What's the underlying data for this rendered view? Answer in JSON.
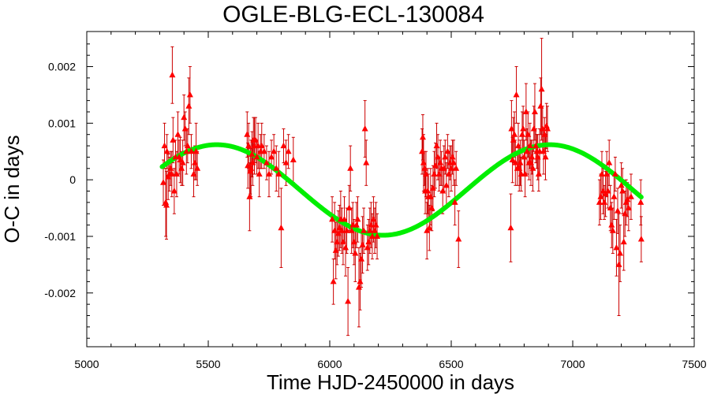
{
  "chart_data": {
    "type": "scatter",
    "title": "OGLE-BLG-ECL-130084",
    "xlabel": "Time HJD-2450000 in days",
    "ylabel": "O-C in days",
    "xlim": [
      5000,
      7500
    ],
    "ylim": [
      -0.00295,
      0.00262
    ],
    "xticks": [
      5000,
      5500,
      6000,
      6500,
      7000,
      7500
    ],
    "xtick_labels": [
      "5000",
      "5500",
      "6000",
      "6500",
      "7000",
      "7500"
    ],
    "yticks": [
      0.002,
      0.001,
      0,
      -0.001,
      -0.002
    ],
    "ytick_labels": [
      "0.002",
      "0.001",
      "0",
      "-0.001",
      "-0.002"
    ],
    "grid": false,
    "colors": {
      "points": "#ff0000",
      "errorbars": "#cc0000",
      "fit": "#00ee00"
    },
    "series": [
      {
        "marker": "triangle",
        "points": [
          [
            5315,
            -5e-05,
            0.0004
          ],
          [
            5320,
            0.0006,
            0.0004
          ],
          [
            5325,
            -0.0004,
            0.0006
          ],
          [
            5328,
            -0.00045,
            0.0006
          ],
          [
            5330,
            0.0005,
            0.0003
          ],
          [
            5335,
            5e-05,
            0.0004
          ],
          [
            5340,
            0.0001,
            0.0003
          ],
          [
            5345,
            0.0002,
            0.0003
          ],
          [
            5350,
            0.0001,
            0.0004
          ],
          [
            5352,
            0.00185,
            0.0005
          ],
          [
            5355,
            0.0007,
            0.0004
          ],
          [
            5360,
            -0.0002,
            0.0004
          ],
          [
            5365,
            0.0004,
            0.0003
          ],
          [
            5370,
            0.0001,
            0.0004
          ],
          [
            5375,
            0.0008,
            0.0004
          ],
          [
            5380,
            0.0004,
            0.0003
          ],
          [
            5385,
            0.00035,
            0.0004
          ],
          [
            5390,
            0.0002,
            0.0003
          ],
          [
            5395,
            0.0003,
            0.0004
          ],
          [
            5400,
            0.0011,
            0.0004
          ],
          [
            5405,
            0.0009,
            0.0003
          ],
          [
            5410,
            0.0005,
            0.0004
          ],
          [
            5415,
            0.0006,
            0.0003
          ],
          [
            5420,
            0.0013,
            0.0005
          ],
          [
            5425,
            0.0015,
            0.0005
          ],
          [
            5430,
            0.0005,
            0.0003
          ],
          [
            5440,
            0.0001,
            0.0004
          ],
          [
            5445,
            0.0003,
            0.0003
          ],
          [
            5450,
            0.0005,
            0.0005
          ],
          [
            5455,
            0.0002,
            0.0003
          ],
          [
            5660,
            0.0008,
            0.0004
          ],
          [
            5663,
            0.00025,
            0.0004
          ],
          [
            5666,
            0.0006,
            0.0004
          ],
          [
            5670,
            -0.0003,
            0.0006
          ],
          [
            5673,
            0.00015,
            0.0004
          ],
          [
            5676,
            0.0002,
            0.0005
          ],
          [
            5680,
            0.00045,
            0.0004
          ],
          [
            5683,
            0.0003,
            0.0004
          ],
          [
            5686,
            0.0007,
            0.0004
          ],
          [
            5690,
            0.0006,
            0.0005
          ],
          [
            5695,
            0.0007,
            0.0004
          ],
          [
            5700,
            0.0004,
            0.0003
          ],
          [
            5705,
            0.0006,
            0.0004
          ],
          [
            5710,
            0.0001,
            0.0004
          ],
          [
            5715,
            0.0005,
            0.0003
          ],
          [
            5720,
            0.0006,
            0.0004
          ],
          [
            5730,
            0.0005,
            0.0003
          ],
          [
            5740,
            0.0003,
            0.0003
          ],
          [
            5750,
            0.0001,
            0.0004
          ],
          [
            5760,
            0.0004,
            0.0003
          ],
          [
            5770,
            0.0005,
            0.0003
          ],
          [
            5780,
            0.0002,
            0.0004
          ],
          [
            5790,
            0.0001,
            0.0004
          ],
          [
            5800,
            -0.00085,
            0.0007
          ],
          [
            5810,
            0.0006,
            0.0003
          ],
          [
            5820,
            0.0003,
            0.0004
          ],
          [
            5830,
            0.0005,
            0.0003
          ],
          [
            5850,
            0.00035,
            0.0004
          ],
          [
            6010,
            -0.0007,
            0.0004
          ],
          [
            6015,
            -0.0018,
            0.0004
          ],
          [
            6020,
            -0.0009,
            0.0005
          ],
          [
            6025,
            -0.00125,
            0.0005
          ],
          [
            6030,
            -0.0011,
            0.0004
          ],
          [
            6035,
            -0.00095,
            0.0004
          ],
          [
            6040,
            -0.00085,
            0.0004
          ],
          [
            6045,
            -0.0007,
            0.0005
          ],
          [
            6050,
            -0.0009,
            0.0004
          ],
          [
            6055,
            -0.0011,
            0.0004
          ],
          [
            6060,
            -0.0007,
            0.0004
          ],
          [
            6065,
            -0.0012,
            0.0005
          ],
          [
            6070,
            -0.0009,
            0.0004
          ],
          [
            6075,
            -0.00215,
            0.0006
          ],
          [
            6080,
            -0.0005,
            0.0004
          ],
          [
            6085,
            0.0002,
            0.0004
          ],
          [
            6090,
            -0.0009,
            0.0004
          ],
          [
            6095,
            -0.0008,
            0.0004
          ],
          [
            6100,
            -0.0011,
            0.0004
          ],
          [
            6105,
            -0.0013,
            0.0005
          ],
          [
            6110,
            -0.0008,
            0.0004
          ],
          [
            6115,
            -0.0007,
            0.0004
          ],
          [
            6120,
            -0.0019,
            0.0007
          ],
          [
            6125,
            -0.0018,
            0.0005
          ],
          [
            6130,
            -0.0014,
            0.0005
          ],
          [
            6135,
            -0.00115,
            0.0005
          ],
          [
            6140,
            -0.0009,
            0.0004
          ],
          [
            6145,
            0.0009,
            0.0005
          ],
          [
            6150,
            0.0003,
            0.0004
          ],
          [
            6155,
            -0.0012,
            0.0004
          ],
          [
            6160,
            -0.0011,
            0.0004
          ],
          [
            6165,
            -0.0009,
            0.0004
          ],
          [
            6170,
            -0.0008,
            0.0004
          ],
          [
            6175,
            -0.001,
            0.0004
          ],
          [
            6180,
            -0.0007,
            0.0004
          ],
          [
            6185,
            -0.0009,
            0.0004
          ],
          [
            6190,
            -0.0008,
            0.0004
          ],
          [
            6195,
            -0.001,
            0.0004
          ],
          [
            6380,
            0.0005,
            0.0004
          ],
          [
            6383,
            0.00075,
            0.0004
          ],
          [
            6386,
            0.0003,
            0.0005
          ],
          [
            6390,
            0.0002,
            0.0003
          ],
          [
            6393,
            -0.0002,
            0.0004
          ],
          [
            6396,
            0.0001,
            0.0004
          ],
          [
            6400,
            -0.0009,
            0.0005
          ],
          [
            6403,
            -0.0002,
            0.0004
          ],
          [
            6406,
            -0.0003,
            0.0004
          ],
          [
            6410,
            -0.00085,
            0.0004
          ],
          [
            6415,
            -0.0003,
            0.0005
          ],
          [
            6420,
            -0.0005,
            0.0004
          ],
          [
            6425,
            -0.00015,
            0.0004
          ],
          [
            6430,
            0.0001,
            0.0004
          ],
          [
            6435,
            0.00025,
            0.0004
          ],
          [
            6440,
            0.0006,
            0.0004
          ],
          [
            6445,
            0.0004,
            0.0004
          ],
          [
            6450,
            0.0001,
            0.0003
          ],
          [
            6455,
            0.0003,
            0.0004
          ],
          [
            6460,
            0.0002,
            0.0003
          ],
          [
            6465,
            -0.0002,
            0.0004
          ],
          [
            6470,
            0.0002,
            0.0004
          ],
          [
            6475,
            0.0004,
            0.0003
          ],
          [
            6480,
            -0.0001,
            0.0004
          ],
          [
            6485,
            0.0005,
            0.0003
          ],
          [
            6490,
            0.0001,
            0.0004
          ],
          [
            6495,
            0.0003,
            0.0003
          ],
          [
            6500,
            0.0002,
            0.0004
          ],
          [
            6505,
            0.0004,
            0.0003
          ],
          [
            6510,
            0.0003,
            0.0004
          ],
          [
            6515,
            -0.0004,
            0.0004
          ],
          [
            6520,
            0.0002,
            0.0003
          ],
          [
            6530,
            -0.00105,
            0.0005
          ],
          [
            6745,
            -0.00085,
            0.0006
          ],
          [
            6748,
            0.0009,
            0.0005
          ],
          [
            6752,
            0.00035,
            0.0004
          ],
          [
            6756,
            0.0007,
            0.0004
          ],
          [
            6760,
            0.0008,
            0.0004
          ],
          [
            6764,
            0.0003,
            0.0004
          ],
          [
            6768,
            0.0015,
            0.0005
          ],
          [
            6772,
            0.0002,
            0.0003
          ],
          [
            6776,
            0.0006,
            0.0004
          ],
          [
            6780,
            0.0002,
            0.0004
          ],
          [
            6784,
            0.0003,
            0.0004
          ],
          [
            6788,
            0.0001,
            0.0003
          ],
          [
            6792,
            0.0008,
            0.0004
          ],
          [
            6796,
            0.0009,
            0.0004
          ],
          [
            6800,
            0.0004,
            0.0003
          ],
          [
            6804,
            0.0001,
            0.0004
          ],
          [
            6808,
            0.0012,
            0.0005
          ],
          [
            6812,
            0.0005,
            0.0004
          ],
          [
            6816,
            0.0008,
            0.0004
          ],
          [
            6820,
            0.0003,
            0.0003
          ],
          [
            6824,
            0.0006,
            0.0004
          ],
          [
            6828,
            0.0003,
            0.0004
          ],
          [
            6832,
            0.0004,
            0.0003
          ],
          [
            6836,
            0.0002,
            0.0004
          ],
          [
            6840,
            0.0009,
            0.0004
          ],
          [
            6844,
            0.0012,
            0.0005
          ],
          [
            6848,
            0.0006,
            0.0003
          ],
          [
            6852,
            0.0005,
            0.0003
          ],
          [
            6856,
            0.0004,
            0.0004
          ],
          [
            6860,
            0.0001,
            0.0003
          ],
          [
            6864,
            0.0005,
            0.0004
          ],
          [
            6868,
            0.0013,
            0.0005
          ],
          [
            6872,
            0.0016,
            0.0009
          ],
          [
            6876,
            0.0009,
            0.0004
          ],
          [
            6880,
            0.0005,
            0.0004
          ],
          [
            6884,
            0.0008,
            0.0003
          ],
          [
            6888,
            0.0004,
            0.0004
          ],
          [
            6892,
            0.00095,
            0.0004
          ],
          [
            6896,
            0.0009,
            0.0004
          ],
          [
            7110,
            -0.0004,
            0.0004
          ],
          [
            7115,
            -0.0003,
            0.0004
          ],
          [
            7120,
            0.0001,
            0.0004
          ],
          [
            7125,
            -0.0002,
            0.0004
          ],
          [
            7130,
            -0.0004,
            0.0003
          ],
          [
            7135,
            -0.00025,
            0.0004
          ],
          [
            7140,
            0.0001,
            0.0004
          ],
          [
            7145,
            -0.0002,
            0.0003
          ],
          [
            7150,
            0.0003,
            0.0004
          ],
          [
            7155,
            -0.0005,
            0.0004
          ],
          [
            7160,
            -0.0008,
            0.0004
          ],
          [
            7165,
            -0.0009,
            0.0004
          ],
          [
            7170,
            -0.0003,
            0.0004
          ],
          [
            7175,
            0.0001,
            0.0003
          ],
          [
            7180,
            -0.0012,
            0.0005
          ],
          [
            7185,
            -0.00055,
            0.0004
          ],
          [
            7190,
            -0.0015,
            0.0009
          ],
          [
            7195,
            -0.0013,
            0.0005
          ],
          [
            7200,
            -0.0001,
            0.0004
          ],
          [
            7205,
            -0.0002,
            0.0004
          ],
          [
            7210,
            -0.0011,
            0.0005
          ],
          [
            7215,
            -0.0006,
            0.0004
          ],
          [
            7220,
            -0.0004,
            0.0004
          ],
          [
            7225,
            -0.00035,
            0.0003
          ],
          [
            7230,
            -0.0005,
            0.0004
          ],
          [
            7240,
            -0.0003,
            0.0004
          ],
          [
            7280,
            -0.0004,
            0.0004
          ],
          [
            7282,
            -0.00105,
            0.0004
          ]
        ]
      }
    ],
    "fit": {
      "type": "sinusoid",
      "offset": -0.00018,
      "amplitude": 0.0008,
      "period": 1370,
      "peak_x": 5535,
      "x_range": [
        5310,
        7282
      ]
    }
  }
}
